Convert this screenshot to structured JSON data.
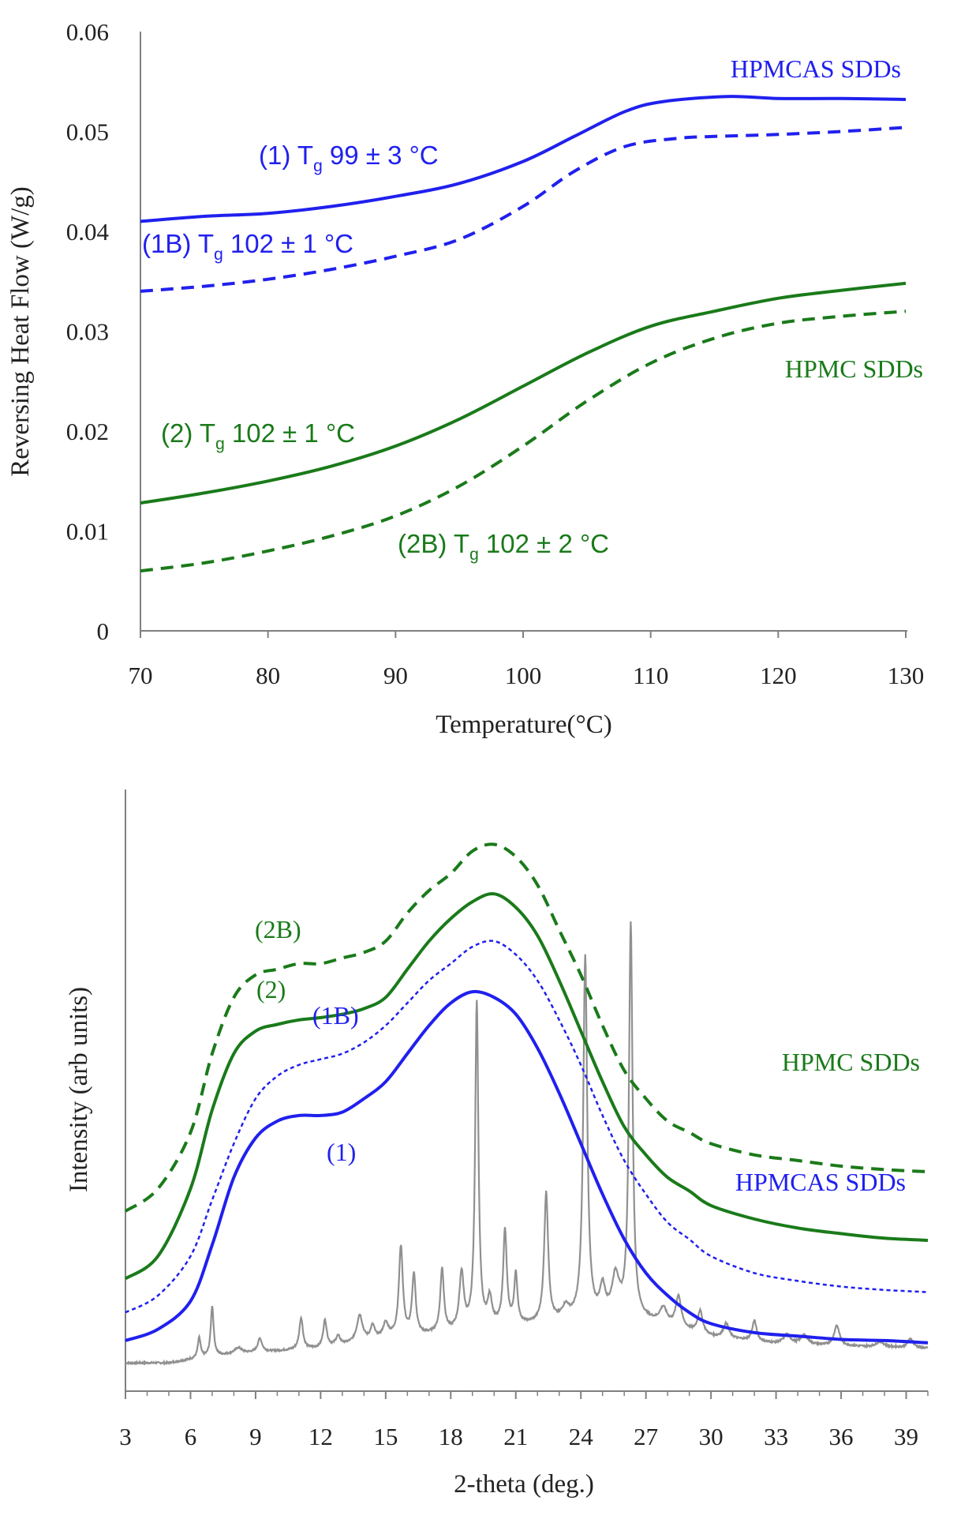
{
  "chart_data": [
    {
      "type": "line",
      "title": "",
      "xlabel": "Temperature(°C)",
      "ylabel": "Reversing Heat Flow (W/g)",
      "xlim": [
        70,
        130
      ],
      "ylim": [
        0,
        0.06
      ],
      "xticks": [
        "70",
        "80",
        "90",
        "100",
        "110",
        "120",
        "130"
      ],
      "yticks": [
        "0",
        "0.01",
        "0.02",
        "0.03",
        "0.04",
        "0.05",
        "0.06"
      ],
      "grid": false,
      "series": [
        {
          "name": "(1) HPMCAS SDD",
          "color": "#2020ee",
          "style": "solid",
          "x": [
            70,
            75,
            80,
            85,
            90,
            95,
            100,
            104,
            108,
            111,
            116,
            120,
            125,
            130
          ],
          "y": [
            0.041,
            0.0415,
            0.0418,
            0.0425,
            0.0435,
            0.0448,
            0.047,
            0.0495,
            0.052,
            0.053,
            0.0535,
            0.0533,
            0.0533,
            0.0532
          ]
        },
        {
          "name": "(1B) HPMCAS SDD",
          "color": "#2020ee",
          "style": "dashed",
          "x": [
            70,
            75,
            80,
            85,
            90,
            95,
            100,
            104,
            108,
            112,
            115,
            120,
            125,
            130
          ],
          "y": [
            0.034,
            0.0345,
            0.0352,
            0.0362,
            0.0375,
            0.0392,
            0.0425,
            0.046,
            0.0485,
            0.0493,
            0.0495,
            0.0497,
            0.05,
            0.0504
          ]
        },
        {
          "name": "(2) HPMC SDD",
          "color": "#1a7a1a",
          "style": "solid",
          "x": [
            70,
            75,
            80,
            85,
            90,
            95,
            100,
            105,
            110,
            115,
            120,
            125,
            130
          ],
          "y": [
            0.0128,
            0.0138,
            0.015,
            0.0165,
            0.0185,
            0.0212,
            0.0245,
            0.0278,
            0.0305,
            0.032,
            0.0333,
            0.0341,
            0.0348
          ]
        },
        {
          "name": "(2B) HPMC SDD",
          "color": "#1a7a1a",
          "style": "dashed",
          "x": [
            70,
            75,
            80,
            85,
            90,
            95,
            100,
            105,
            110,
            115,
            120,
            125,
            130
          ],
          "y": [
            0.006,
            0.0068,
            0.008,
            0.0095,
            0.0115,
            0.0145,
            0.0185,
            0.023,
            0.0268,
            0.0293,
            0.0308,
            0.0315,
            0.032
          ]
        }
      ],
      "annotations": [
        {
          "id": "ann1",
          "text": "(1) T",
          "sub": "g",
          "after": " 99 ± 3 °C",
          "color": "#2020ee"
        },
        {
          "id": "ann1b",
          "text": "(1B)  T",
          "sub": "g",
          "after": " 102 ± 1 °C",
          "color": "#2020ee"
        },
        {
          "id": "ann2",
          "text": "(2) T",
          "sub": "g",
          "after": " 102 ± 1 °C",
          "color": "#1a7a1a"
        },
        {
          "id": "ann2b",
          "text": "(2B) T",
          "sub": "g",
          "after": " 102 ± 2 °C",
          "color": "#1a7a1a"
        }
      ],
      "group_labels": [
        {
          "text": "HPMCAS SDDs",
          "color": "#2020ee"
        },
        {
          "text": "HPMC SDDs",
          "color": "#1a7a1a"
        }
      ]
    },
    {
      "type": "line",
      "title": "",
      "xlabel": "2-theta (deg.)",
      "ylabel": "Intensity (arb units)",
      "xlim": [
        3,
        40
      ],
      "xticks": [
        "3",
        "6",
        "9",
        "12",
        "15",
        "18",
        "21",
        "24",
        "27",
        "30",
        "33",
        "36",
        "39"
      ],
      "grid": false,
      "series": [
        {
          "name": "(2B)",
          "color": "#1a7a1a",
          "style": "dashed",
          "x": [
            3,
            4.5,
            6,
            7,
            8,
            9,
            10,
            11,
            12,
            13,
            14,
            15,
            16,
            17,
            18,
            19,
            20,
            21,
            22,
            23,
            24,
            25,
            26,
            27,
            28,
            29,
            30,
            32,
            34,
            36,
            38,
            40
          ],
          "y": [
            71,
            73,
            78,
            85,
            90,
            92,
            92.5,
            93,
            93,
            93.5,
            94,
            95,
            97.5,
            99.5,
            101,
            103,
            103.6,
            102.5,
            100,
            96,
            92,
            87.5,
            83.5,
            81,
            79,
            78,
            77,
            76,
            75.5,
            75,
            74.7,
            74.5
          ]
        },
        {
          "name": "(2)",
          "color": "#1a7a1a",
          "style": "solid",
          "x": [
            3,
            4.5,
            6,
            7,
            8,
            9,
            10,
            11,
            12,
            13,
            14,
            15,
            16,
            17,
            18,
            19,
            20,
            21,
            22,
            23,
            24,
            25,
            26,
            27,
            28,
            29,
            30,
            32,
            34,
            36,
            38,
            40
          ],
          "y": [
            65,
            67,
            73,
            80,
            85,
            87,
            87.6,
            88,
            88.2,
            88.5,
            89,
            90,
            92.5,
            95,
            97,
            98.5,
            99.2,
            98,
            95.5,
            91.5,
            87,
            82.5,
            78.5,
            76,
            74,
            72.8,
            71.5,
            70.3,
            69.5,
            69,
            68.6,
            68.4
          ]
        },
        {
          "name": "(1B)",
          "color": "#2020ee",
          "style": "dotted",
          "x": [
            3,
            4.5,
            6,
            7,
            8,
            9,
            10,
            11,
            12,
            13,
            14,
            15,
            16,
            17,
            18,
            19,
            20,
            21,
            22,
            23,
            24,
            25,
            26,
            27,
            28,
            29,
            30,
            32,
            34,
            36,
            38,
            40
          ],
          "y": [
            62,
            63.5,
            67,
            72,
            77,
            81,
            83,
            84,
            84.5,
            85,
            86,
            87.5,
            89.5,
            91.5,
            93,
            94.5,
            95,
            93.8,
            91.5,
            88,
            84,
            79.5,
            75.5,
            72.5,
            70,
            68.5,
            67,
            65.5,
            64.8,
            64.3,
            64,
            63.8
          ]
        },
        {
          "name": "(1)",
          "color": "#2020ee",
          "style": "solid",
          "x": [
            3,
            4.5,
            6,
            7,
            8,
            9,
            10,
            11,
            12,
            13,
            14,
            15,
            16,
            17,
            18,
            19,
            20,
            21,
            22,
            23,
            24,
            25,
            26,
            27,
            28,
            29,
            30,
            32,
            34,
            36,
            38,
            40
          ],
          "y": [
            59.5,
            60.5,
            63,
            68,
            74,
            77.5,
            79,
            79.5,
            79.5,
            79.8,
            81,
            82.5,
            85,
            87.5,
            89.5,
            90.5,
            90,
            88.5,
            85.5,
            81.5,
            77,
            72.5,
            68.5,
            65.5,
            63.5,
            62,
            61,
            60.2,
            59.9,
            59.6,
            59.5,
            59.3
          ]
        },
        {
          "name": "crystalline",
          "color": "#909090",
          "style": "solid",
          "baseline": [
            [
              3,
              57.5
            ],
            [
              5,
              57.5
            ],
            [
              6,
              57.8
            ],
            [
              8,
              58.3
            ],
            [
              12,
              58.8
            ],
            [
              15,
              59.6
            ],
            [
              18,
              60.2
            ],
            [
              20,
              60.6
            ],
            [
              22,
              60.9
            ],
            [
              24,
              61.2
            ],
            [
              26,
              61.4
            ],
            [
              27,
              61.2
            ],
            [
              30,
              59.8
            ],
            [
              33,
              59.2
            ],
            [
              36,
              59
            ],
            [
              40,
              58.8
            ]
          ],
          "peaks": [
            [
              6.4,
              1.8,
              0.08
            ],
            [
              7.0,
              4.5,
              0.08
            ],
            [
              8.2,
              0.5,
              0.2
            ],
            [
              9.2,
              1.2,
              0.12
            ],
            [
              11.1,
              2.8,
              0.1
            ],
            [
              12.2,
              2.4,
              0.1
            ],
            [
              12.8,
              0.8,
              0.12
            ],
            [
              13.8,
              2.4,
              0.16
            ],
            [
              14.4,
              1.2,
              0.12
            ],
            [
              15.0,
              1.3,
              0.15
            ],
            [
              15.7,
              8.0,
              0.11
            ],
            [
              16.3,
              5.4,
              0.1
            ],
            [
              17.6,
              5.6,
              0.1
            ],
            [
              18.5,
              5.0,
              0.12
            ],
            [
              19.2,
              29.0,
              0.09
            ],
            [
              19.8,
              2.4,
              0.12
            ],
            [
              20.5,
              8.4,
              0.1
            ],
            [
              21.0,
              4.4,
              0.09
            ],
            [
              22.4,
              11.5,
              0.11
            ],
            [
              23.3,
              1.1,
              0.2
            ],
            [
              24.2,
              32.2,
              0.11
            ],
            [
              25.0,
              2.5,
              0.15
            ],
            [
              25.6,
              3.5,
              0.2
            ],
            [
              26.3,
              35.0,
              0.1
            ],
            [
              27.8,
              1.4,
              0.2
            ],
            [
              28.5,
              2.8,
              0.15
            ],
            [
              29.5,
              2.0,
              0.14
            ],
            [
              30.7,
              1.3,
              0.15
            ],
            [
              32.0,
              1.8,
              0.12
            ],
            [
              33.5,
              0.8,
              0.2
            ],
            [
              34.3,
              0.8,
              0.2
            ],
            [
              35.8,
              1.8,
              0.15
            ],
            [
              37.8,
              0.5,
              0.2
            ],
            [
              39.2,
              0.8,
              0.15
            ]
          ]
        }
      ],
      "annotations": [
        {
          "id": "lab2b",
          "text": "(2B)",
          "color": "#1a7a1a"
        },
        {
          "id": "lab2",
          "text": "(2)",
          "color": "#1a7a1a"
        },
        {
          "id": "lab1b",
          "text": "(1B)",
          "color": "#2020ee"
        },
        {
          "id": "lab1",
          "text": "(1)",
          "color": "#2020ee"
        }
      ],
      "group_labels": [
        {
          "text": "HPMC SDDs",
          "color": "#1a7a1a"
        },
        {
          "text": "HPMCAS SDDs",
          "color": "#2020ee"
        }
      ]
    }
  ]
}
